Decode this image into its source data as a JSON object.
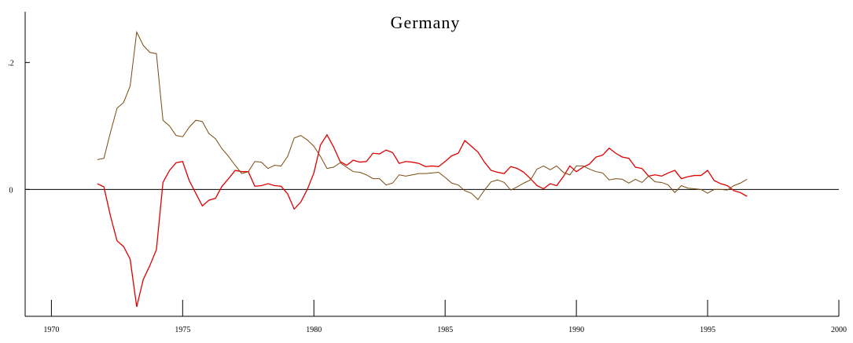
{
  "chart_data": {
    "type": "line",
    "title": "Germany",
    "x": [
      1971.75,
      1972,
      1972.25,
      1972.5,
      1972.75,
      1973,
      1973.25,
      1973.5,
      1973.75,
      1974,
      1974.25,
      1974.5,
      1974.75,
      1975,
      1975.25,
      1975.5,
      1975.75,
      1976,
      1976.25,
      1976.5,
      1976.75,
      1977,
      1977.25,
      1977.5,
      1977.75,
      1978,
      1978.25,
      1978.5,
      1978.75,
      1979,
      1979.25,
      1979.5,
      1979.75,
      1980,
      1980.25,
      1980.5,
      1980.75,
      1981,
      1981.25,
      1981.5,
      1981.75,
      1982,
      1982.25,
      1982.5,
      1982.75,
      1983,
      1983.25,
      1983.5,
      1983.75,
      1984,
      1984.25,
      1984.5,
      1984.75,
      1985,
      1985.25,
      1985.5,
      1985.75,
      1986,
      1986.25,
      1986.5,
      1986.75,
      1987,
      1987.25,
      1987.5,
      1987.75,
      1988,
      1988.25,
      1988.5,
      1988.75,
      1989,
      1989.25,
      1989.5,
      1989.75,
      1990,
      1990.25,
      1990.5,
      1990.75,
      1991,
      1991.25,
      1991.5,
      1991.75,
      1992,
      1992.25,
      1992.5,
      1992.75,
      1993,
      1993.25,
      1993.5,
      1993.75,
      1994,
      1994.25,
      1994.5,
      1994.75,
      1995,
      1995.25,
      1995.5,
      1995.75,
      1996,
      1996.25,
      1996.5
    ],
    "series": [
      {
        "color": "#e00000",
        "values": [
          0.009,
          0.004,
          -0.042,
          -0.081,
          -0.09,
          -0.11,
          -0.185,
          -0.142,
          -0.12,
          -0.095,
          0.011,
          0.03,
          0.042,
          0.044,
          0.014,
          -0.006,
          -0.026,
          -0.017,
          -0.014,
          0.005,
          0.017,
          0.03,
          0.028,
          0.028,
          0.005,
          0.006,
          0.009,
          0.006,
          0.005,
          -0.007,
          -0.031,
          -0.02,
          0,
          0.026,
          0.07,
          0.086,
          0.067,
          0.044,
          0.038,
          0.046,
          0.043,
          0.044,
          0.057,
          0.056,
          0.062,
          0.058,
          0.041,
          0.044,
          0.043,
          0.041,
          0.036,
          0.037,
          0.036,
          0.044,
          0.053,
          0.057,
          0.077,
          0.068,
          0.059,
          0.043,
          0.03,
          0.027,
          0.025,
          0.036,
          0.033,
          0.027,
          0.017,
          0.006,
          0.001,
          0.009,
          0.006,
          0.02,
          0.037,
          0.028,
          0.035,
          0.04,
          0.051,
          0.054,
          0.065,
          0.057,
          0.051,
          0.049,
          0.035,
          0.033,
          0.021,
          0.023,
          0.021,
          0.026,
          0.03,
          0.017,
          0.02,
          0.022,
          0.022,
          0.03,
          0.014,
          0.009,
          0.006,
          -0.002,
          -0.005,
          -0.011
        ]
      },
      {
        "color": "#7a4a10",
        "values": [
          0.047,
          0.049,
          0.09,
          0.128,
          0.137,
          0.163,
          0.248,
          0.227,
          0.216,
          0.214,
          0.109,
          0.1,
          0.085,
          0.083,
          0.098,
          0.109,
          0.107,
          0.088,
          0.08,
          0.064,
          0.052,
          0.038,
          0.025,
          0.028,
          0.044,
          0.043,
          0.033,
          0.038,
          0.037,
          0.052,
          0.081,
          0.085,
          0.078,
          0.068,
          0.052,
          0.033,
          0.035,
          0.042,
          0.035,
          0.028,
          0.027,
          0.023,
          0.017,
          0.017,
          0.007,
          0.01,
          0.023,
          0.021,
          0.023,
          0.025,
          0.025,
          0.026,
          0.027,
          0.019,
          0.01,
          0.007,
          -0.002,
          -0.006,
          -0.016,
          -0.001,
          0.012,
          0.015,
          0.011,
          -0.001,
          0.004,
          0.01,
          0.015,
          0.032,
          0.037,
          0.031,
          0.037,
          0.027,
          0.023,
          0.037,
          0.037,
          0.032,
          0.028,
          0.026,
          0.015,
          0.017,
          0.016,
          0.01,
          0.016,
          0.011,
          0.021,
          0.012,
          0.011,
          0.007,
          -0.005,
          0.006,
          0.002,
          0.001,
          0,
          -0.006,
          0,
          0,
          -0.001,
          0.006,
          0.01,
          0.016
        ]
      }
    ],
    "xlim": [
      1969,
      2000
    ],
    "xticks": [
      1970,
      1975,
      1980,
      1985,
      1990,
      1995,
      2000
    ],
    "ylim": [
      -0.2,
      0.28
    ],
    "yticks": [
      {
        "value": 0.2,
        "label": ".2"
      },
      0
    ],
    "reference_line": 0
  }
}
